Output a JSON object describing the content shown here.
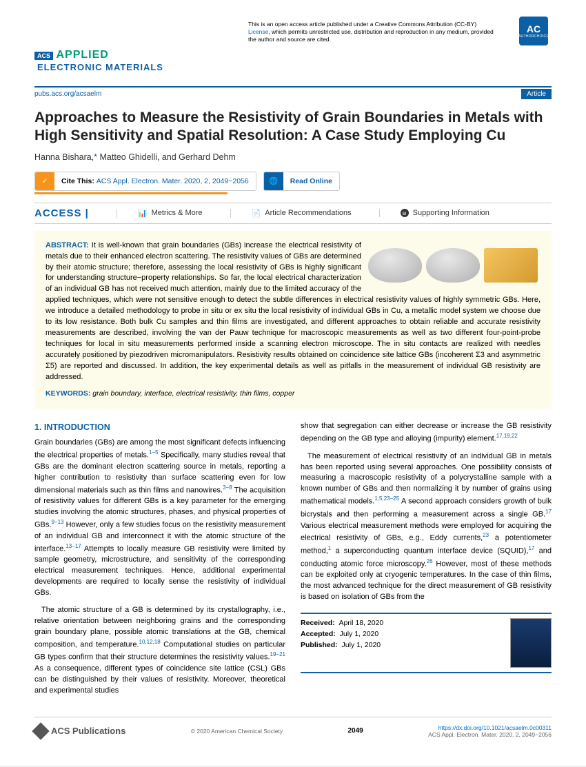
{
  "license": {
    "text1": "This is an open access article published under a Creative Commons Attribution (CC-BY) ",
    "link": "License",
    "text2": ", which permits unrestricted use, distribution and reproduction in any medium, provided the author and source are cited."
  },
  "badge": {
    "main": "AC",
    "sub": "AUTHORCHOICE"
  },
  "journal": {
    "acs": "ACS",
    "applied": "APPLIED",
    "elec": "ELECTRONIC MATERIALS"
  },
  "nav": {
    "url": "pubs.acs.org/acsaelm",
    "tag": "Article"
  },
  "title": "Approaches to Measure the Resistivity of Grain Boundaries in Metals with High Sensitivity and Spatial Resolution: A Case Study Employing Cu",
  "authors": {
    "a1": "Hanna Bishara,",
    "star": "*",
    "a2": " Matteo Ghidelli, and Gerhard Dehm"
  },
  "cite": {
    "label": "Cite This: ",
    "citation": "ACS Appl. Electron. Mater. 2020, 2, 2049−2056"
  },
  "read": "Read Online",
  "access": {
    "label": "ACCESS |",
    "metrics": "Metrics & More",
    "recs": "Article Recommendations",
    "si": "Supporting Information"
  },
  "abstract": {
    "label": "ABSTRACT:",
    "text": " It is well-known that grain boundaries (GBs) increase the electrical resistivity of metals due to their enhanced electron scattering. The resistivity values of GBs are determined by their atomic structure; therefore, assessing the local resistivity of GBs is highly significant for understanding structure−property relationships. So far, the local electrical characterization of an individual GB has not received much attention, mainly due to the limited accuracy of the applied techniques, which were not sensitive enough to detect the subtle differences in electrical resistivity values of highly symmetric GBs. Here, we introduce a detailed methodology to probe in situ or ex situ the local resistivity of individual GBs in Cu, a metallic model system we choose due to its low resistance. Both bulk Cu samples and thin films are investigated, and different approaches to obtain reliable and accurate resistivity measurements are described, involving the van der Pauw technique for macroscopic measurements as well as two different four-point-probe techniques for local in situ measurements performed inside a scanning electron microscope. The in situ contacts are realized with needles accurately positioned by piezodriven micromanipulators. Resistivity results obtained on coincidence site lattice GBs (incoherent Σ3 and asymmetric Σ5) are reported and discussed. In addition, the key experimental details as well as pitfalls in the measurement of individual GB resistivity are addressed."
  },
  "keywords": {
    "label": "KEYWORDS:",
    "text": " grain boundary, interface, electrical resistivity, thin films, copper"
  },
  "intro": {
    "head": "1. INTRODUCTION",
    "p1a": "Grain boundaries (GBs) are among the most significant defects influencing the electrical properties of metals.",
    "p1s1": "1−5",
    "p1b": " Specifically, many studies reveal that GBs are the dominant electron scattering source in metals, reporting a higher contribution to resistivity than surface scattering even for low dimensional materials such as thin films and nanowires.",
    "p1s2": "3−8",
    "p1c": " The acquisition of resistivity values for different GBs is a key parameter for the emerging studies involving the atomic structures, phases, and physical properties of GBs.",
    "p1s3": "9−13",
    "p1d": " However, only a few studies focus on the resistivity measurement of an individual GB and interconnect it with the atomic structure of the interface.",
    "p1s4": "13−17",
    "p1e": " Attempts to locally measure GB resistivity were limited by sample geometry, microstructure, and sensitivity of the corresponding electrical measurement techniques. Hence, additional experimental developments are required to locally sense the resistivity of individual GBs.",
    "p2a": "The atomic structure of a GB is determined by its crystallography, i.e., relative orientation between neighboring grains and the corresponding grain boundary plane, possible atomic translations at the GB, chemical composition, and temperature.",
    "p2s1": "10,12,18",
    "p2b": " Computational studies on particular GB types confirm that their structure determines the resistivity values.",
    "p2s2": "19−21",
    "p2c": " As a consequence, different types of coincidence site lattice (CSL) GBs can be distinguished by their values of resistivity. Moreover, theoretical and experimental studies",
    "r1a": "show that segregation can either decrease or increase the GB resistivity depending on the GB type and alloying (impurity) element.",
    "r1s": "17,19,22",
    "r2a": "The measurement of electrical resistivity of an individual GB in metals has been reported using several approaches. One possibility consists of measuring a macroscopic resistivity of a polycrystalline sample with a known number of GBs and then normalizing it by number of grains using mathematical models.",
    "r2s1": "1,5,23−25",
    "r2b": " A second approach considers growth of bulk bicrystals and then performing a measurement across a single GB.",
    "r2s2": "17",
    "r2c": " Various electrical measurement methods were employed for acquiring the electrical resistivity of GBs, e.g., Eddy currents,",
    "r2s3": "23",
    "r2d": " a potentiometer method,",
    "r2s4": "1",
    "r2e": " a superconducting quantum interface device (SQUID),",
    "r2s5": "17",
    "r2f": " and conducting atomic force microscopy.",
    "r2s6": "26",
    "r2g": " However, most of these methods can be exploited only at cryogenic temperatures. In the case of thin films, the most advanced technique for the direct measurement of GB resistivity is based on isolation of GBs from the"
  },
  "dates": {
    "recv_l": "Received:",
    "recv": "April 18, 2020",
    "acc_l": "Accepted:",
    "acc": "July 1, 2020",
    "pub_l": "Published:",
    "pub": "July 1, 2020"
  },
  "footer": {
    "pub": "ACS Publications",
    "copy": "© 2020 American Chemical Society",
    "page": "2049",
    "doi": "https://dx.doi.org/10.1021/acsaelm.0c00311",
    "ref": "ACS Appl. Electron. Mater. 2020, 2, 2049−2056"
  }
}
